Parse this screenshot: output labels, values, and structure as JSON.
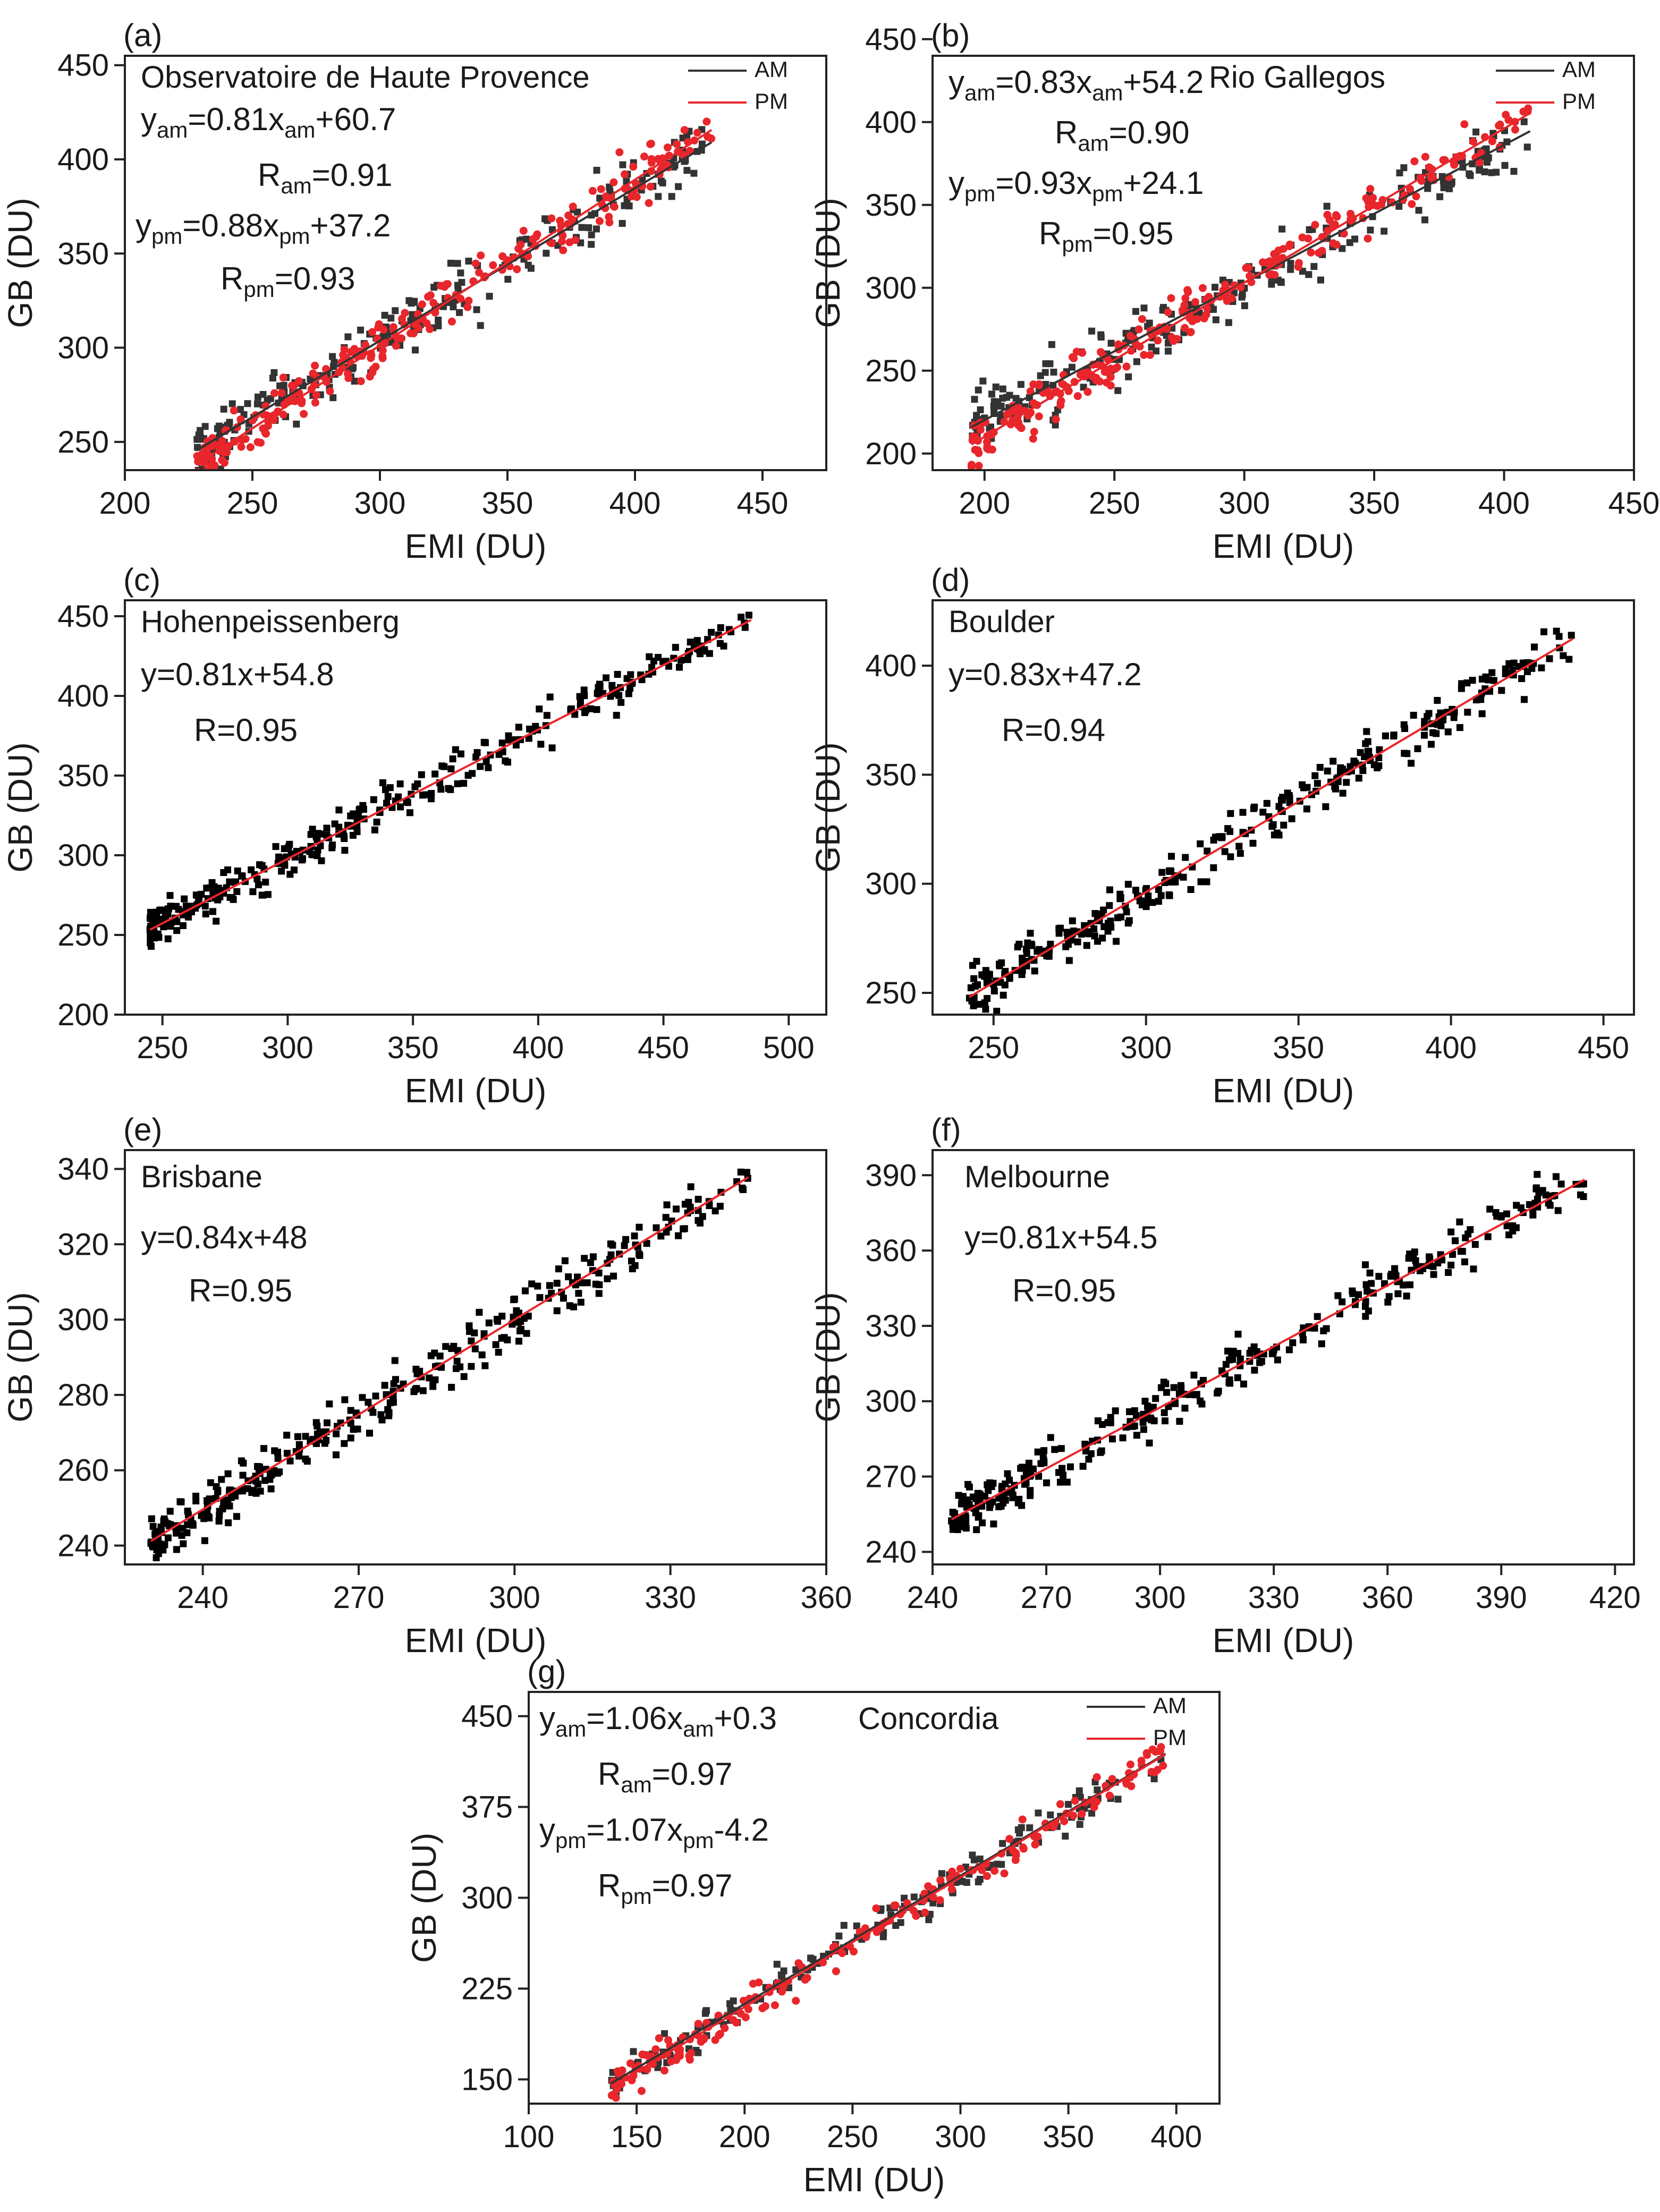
{
  "chart_data": [
    {
      "id": "a",
      "type": "scatter",
      "panel_label": "(a)",
      "title": "Observatoire de Haute Provence",
      "xlabel": "EMI (DU)",
      "ylabel": "GB (DU)",
      "xlim": [
        200,
        475
      ],
      "ylim": [
        235,
        455
      ],
      "xticks": [
        200,
        250,
        300,
        350,
        400,
        450
      ],
      "yticks": [
        250,
        300,
        350,
        400,
        450
      ],
      "legend": [
        {
          "label": "AM",
          "color": "#333333"
        },
        {
          "label": "PM",
          "color": "#e8262b"
        }
      ],
      "annotations": [
        {
          "base": "y",
          "sub": "am",
          "mid": "=0.81x",
          "sub2": "am",
          "rest": "+60.7"
        },
        {
          "base": "R",
          "sub": "am",
          "rest": "=0.91"
        },
        {
          "base": "y",
          "sub": "pm",
          "mid": "=0.88x",
          "sub2": "pm",
          "rest": "+37.2"
        },
        {
          "base": "R",
          "sub": "pm",
          "rest": "=0.93"
        }
      ],
      "series": [
        {
          "name": "AM",
          "color": "#333333",
          "slope": 0.81,
          "intercept": 60.7,
          "x_range": [
            228,
            430
          ],
          "r": 0.91,
          "n": 230,
          "spread": 15
        },
        {
          "name": "PM",
          "color": "#e8262b",
          "slope": 0.88,
          "intercept": 37.2,
          "x_range": [
            228,
            430
          ],
          "r": 0.93,
          "n": 260,
          "spread": 13
        }
      ]
    },
    {
      "id": "b",
      "type": "scatter",
      "panel_label": "(b)",
      "title": "Rio Gallegos",
      "xlabel": "EMI (DU)",
      "ylabel": "GB (DU)",
      "xlim": [
        180,
        450
      ],
      "ylim": [
        190,
        440
      ],
      "xticks": [
        200,
        250,
        300,
        350,
        400,
        450
      ],
      "yticks": [
        200,
        250,
        300,
        350,
        400,
        450
      ],
      "legend": [
        {
          "label": "AM",
          "color": "#333333"
        },
        {
          "label": "PM",
          "color": "#e8262b"
        }
      ],
      "annotations": [
        {
          "base": "y",
          "sub": "am",
          "mid": "=0.83x",
          "sub2": "am",
          "rest": "+54.2"
        },
        {
          "base": "R",
          "sub": "am",
          "rest": "=0.90"
        },
        {
          "base": "y",
          "sub": "pm",
          "mid": "=0.93x",
          "sub2": "pm",
          "rest": "+24.1"
        },
        {
          "base": "R",
          "sub": "pm",
          "rest": "=0.95"
        }
      ],
      "series": [
        {
          "name": "AM",
          "color": "#333333",
          "slope": 0.83,
          "intercept": 54.2,
          "x_range": [
            195,
            410
          ],
          "r": 0.9,
          "n": 230,
          "spread": 17
        },
        {
          "name": "PM",
          "color": "#e8262b",
          "slope": 0.93,
          "intercept": 24.1,
          "x_range": [
            195,
            410
          ],
          "r": 0.95,
          "n": 260,
          "spread": 13
        }
      ]
    },
    {
      "id": "c",
      "type": "scatter",
      "panel_label": "(c)",
      "title": "Hohenpeissenberg",
      "xlabel": "EMI (DU)",
      "ylabel": "GB (DU)",
      "xlim": [
        235,
        515
      ],
      "ylim": [
        200,
        460
      ],
      "xticks": [
        250,
        300,
        350,
        400,
        450,
        500
      ],
      "yticks": [
        200,
        250,
        300,
        350,
        400,
        450
      ],
      "annotations": [
        {
          "base": "y",
          "rest": "=0.81x+54.8"
        },
        {
          "base": "R",
          "rest": "=0.95"
        }
      ],
      "series": [
        {
          "name": "all",
          "color": "#000000",
          "slope": 0.81,
          "intercept": 54.8,
          "x_range": [
            245,
            485
          ],
          "r": 0.95,
          "n": 330,
          "spread": 12
        }
      ]
    },
    {
      "id": "d",
      "type": "scatter",
      "panel_label": "(d)",
      "title": "Boulder",
      "xlabel": "EMI (DU)",
      "ylabel": "GB (DU)",
      "xlim": [
        230,
        460
      ],
      "ylim": [
        240,
        430
      ],
      "xticks": [
        250,
        300,
        350,
        400,
        450
      ],
      "yticks": [
        250,
        300,
        350,
        400
      ],
      "annotations": [
        {
          "base": "y",
          "rest": "=0.83x+47.2"
        },
        {
          "base": "R",
          "rest": "=0.94"
        }
      ],
      "series": [
        {
          "name": "all",
          "color": "#000000",
          "slope": 0.83,
          "intercept": 47.2,
          "x_range": [
            242,
            440
          ],
          "r": 0.94,
          "n": 320,
          "spread": 11
        }
      ]
    },
    {
      "id": "e",
      "type": "scatter",
      "panel_label": "(e)",
      "title": "Brisbane",
      "xlabel": "EMI (DU)",
      "ylabel": "GB (DU)",
      "xlim": [
        225,
        360
      ],
      "ylim": [
        235,
        345
      ],
      "xticks": [
        240,
        270,
        300,
        330,
        360
      ],
      "yticks": [
        240,
        260,
        280,
        300,
        320,
        340
      ],
      "annotations": [
        {
          "base": "y",
          "rest": "=0.84x+48"
        },
        {
          "base": "R",
          "rest": "=0.95"
        }
      ],
      "series": [
        {
          "name": "all",
          "color": "#000000",
          "slope": 0.84,
          "intercept": 48,
          "x_range": [
            230,
            345
          ],
          "r": 0.95,
          "n": 330,
          "spread": 6
        }
      ]
    },
    {
      "id": "f",
      "type": "scatter",
      "panel_label": "(f)",
      "title": "Melbourne",
      "xlabel": "EMI (DU)",
      "ylabel": "GB (DU)",
      "xlim": [
        240,
        425
      ],
      "ylim": [
        235,
        400
      ],
      "xticks": [
        240,
        270,
        300,
        330,
        360,
        390,
        420
      ],
      "yticks": [
        240,
        270,
        300,
        330,
        360,
        390
      ],
      "annotations": [
        {
          "base": "y",
          "rest": "=0.81x+54.5"
        },
        {
          "base": "R",
          "rest": "=0.95"
        }
      ],
      "series": [
        {
          "name": "all",
          "color": "#000000",
          "slope": 0.81,
          "intercept": 54.5,
          "x_range": [
            245,
            412
          ],
          "r": 0.95,
          "n": 330,
          "spread": 9
        }
      ]
    },
    {
      "id": "g",
      "type": "scatter",
      "panel_label": "(g)",
      "title": "Concordia",
      "xlabel": "EMI (DU)",
      "ylabel": "GB (DU)",
      "xlim": [
        100,
        420
      ],
      "ylim": [
        130,
        470
      ],
      "xticks": [
        100,
        150,
        200,
        250,
        300,
        350,
        400
      ],
      "yticks": [
        150,
        225,
        300,
        375,
        450
      ],
      "legend": [
        {
          "label": "AM",
          "color": "#333333"
        },
        {
          "label": "PM",
          "color": "#e8262b"
        }
      ],
      "annotations": [
        {
          "base": "y",
          "sub": "am",
          "rest": "=1.06x",
          "sub2": "am",
          "rest2": "+0.3"
        },
        {
          "base": "R",
          "sub": "am",
          "rest": "=0.97"
        },
        {
          "base": "y",
          "sub": "pm",
          "rest": "=1.07x",
          "sub2": "pm",
          "rest2": "-4.2"
        },
        {
          "base": "R",
          "sub": "pm",
          "rest": "=0.97"
        }
      ],
      "series": [
        {
          "name": "AM",
          "color": "#333333",
          "slope": 1.06,
          "intercept": 0.3,
          "x_range": [
            138,
            395
          ],
          "r": 0.97,
          "n": 170,
          "spread": 14
        },
        {
          "name": "PM",
          "color": "#e8262b",
          "slope": 1.07,
          "intercept": -4.2,
          "x_range": [
            138,
            395
          ],
          "r": 0.97,
          "n": 190,
          "spread": 14
        }
      ]
    }
  ]
}
